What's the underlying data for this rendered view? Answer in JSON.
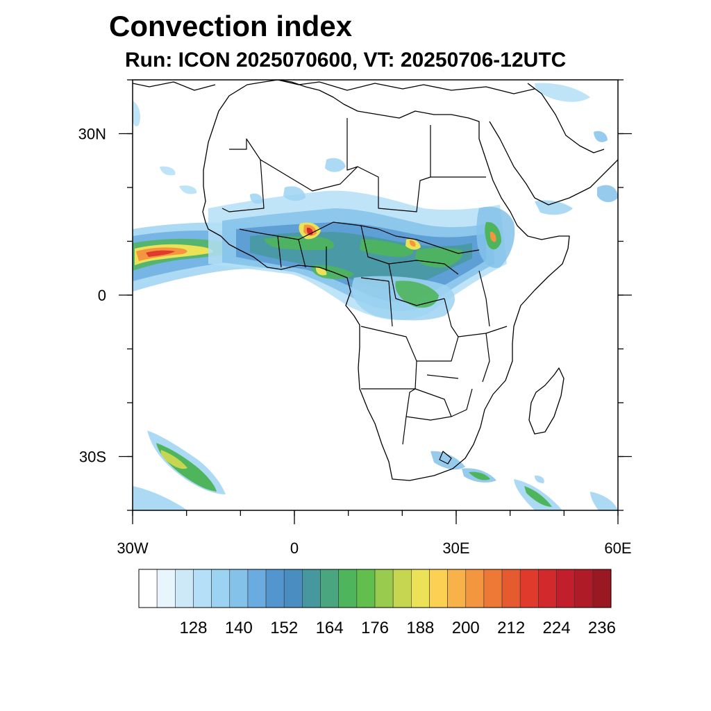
{
  "header": {
    "title": "Convection index",
    "subtitle": "Run: ICON 2025070600,  VT: 20250706-12UTC"
  },
  "map": {
    "projection": "cylindrical-equidistant",
    "lon_range": [
      -30,
      60
    ],
    "lat_range": [
      -40,
      40
    ],
    "lat_ticks": [
      {
        "value": 30,
        "label": "30N"
      },
      {
        "value": 0,
        "label": "0"
      },
      {
        "value": -30,
        "label": "30S"
      }
    ],
    "lon_ticks": [
      {
        "value": -30,
        "label": "30W"
      },
      {
        "value": 0,
        "label": "0"
      },
      {
        "value": 30,
        "label": "30E"
      },
      {
        "value": 60,
        "label": "60E"
      }
    ],
    "coastline_color": "#000000",
    "region": "Africa"
  },
  "colorbar": {
    "colors": [
      "#ffffff",
      "#e8f5fc",
      "#cde9f8",
      "#b4dff6",
      "#9dd3f2",
      "#84c2ea",
      "#6aace0",
      "#5396cf",
      "#4a8dc0",
      "#47989e",
      "#4aa67e",
      "#4fb55c",
      "#62bf4d",
      "#99cb4e",
      "#c6d651",
      "#ebe257",
      "#fbd053",
      "#f8b24a",
      "#f4963f",
      "#ee7836",
      "#e65a2f",
      "#df3a2b",
      "#d22a2c",
      "#c21f2c",
      "#b01b28",
      "#9a1822"
    ],
    "tick_labels": [
      "128",
      "140",
      "152",
      "164",
      "176",
      "188",
      "200",
      "212",
      "224",
      "236"
    ]
  }
}
